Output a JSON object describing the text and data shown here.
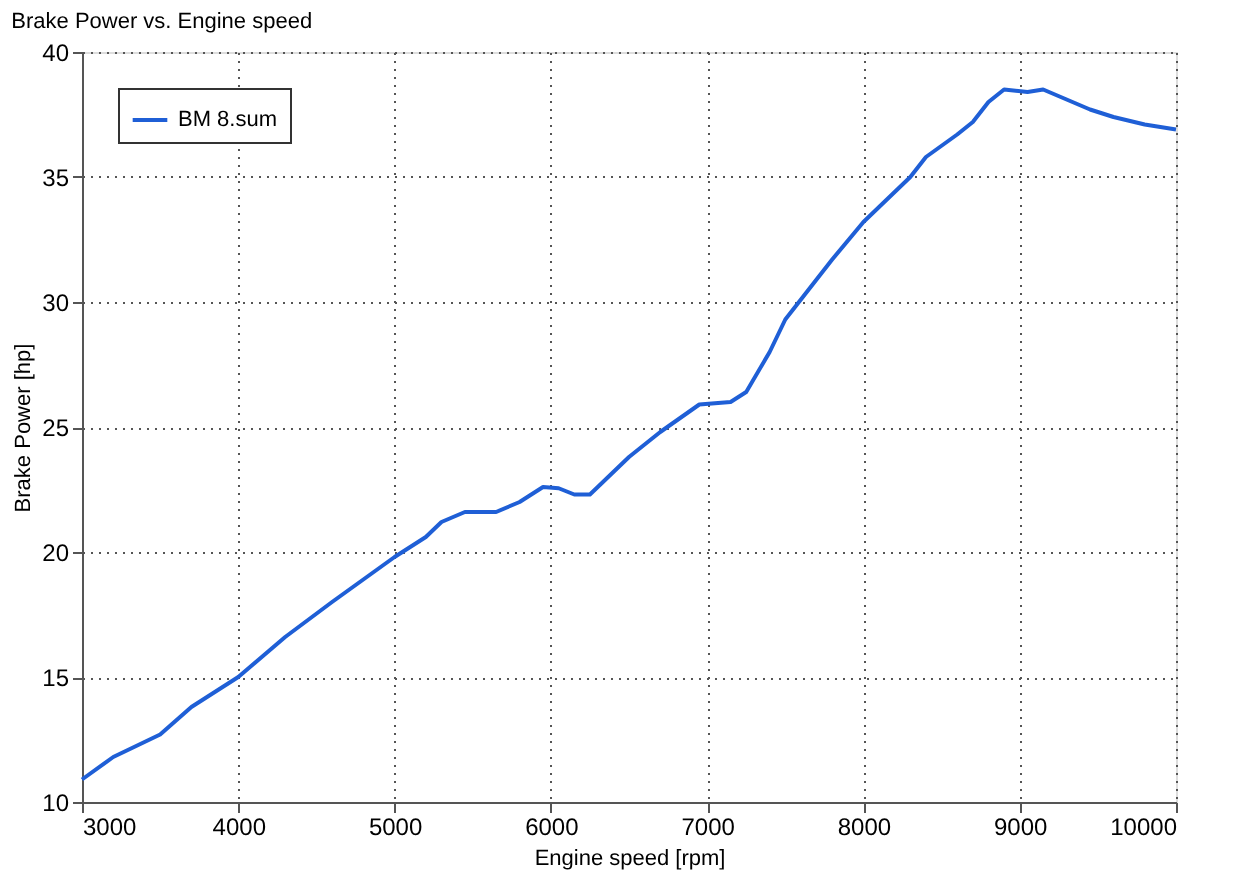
{
  "chart_data": {
    "type": "line",
    "title": "Brake Power vs. Engine speed",
    "xlabel": "Engine speed  [rpm]",
    "ylabel": "Brake Power  [hp]",
    "x": [
      3000,
      3200,
      3500,
      3700,
      4000,
      4300,
      4600,
      5000,
      5200,
      5300,
      5450,
      5650,
      5800,
      5950,
      6050,
      6150,
      6250,
      6350,
      6500,
      6700,
      6950,
      7150,
      7250,
      7400,
      7500,
      7650,
      7800,
      8000,
      8100,
      8300,
      8400,
      8600,
      8700,
      8800,
      8900,
      9050,
      9150,
      9300,
      9450,
      9600,
      9800,
      10000
    ],
    "series": [
      {
        "name": "BM 8.sum",
        "color": "#1f5fd6",
        "values": [
          10.9,
          11.8,
          12.7,
          13.8,
          15.0,
          16.6,
          18.0,
          19.8,
          20.6,
          21.2,
          21.6,
          21.6,
          22.0,
          22.6,
          22.55,
          22.3,
          22.3,
          22.9,
          23.8,
          24.8,
          25.9,
          26.0,
          26.4,
          28.0,
          29.3,
          30.5,
          31.7,
          33.2,
          33.8,
          35.0,
          35.8,
          36.7,
          37.2,
          38.0,
          38.5,
          38.4,
          38.5,
          38.1,
          37.7,
          37.4,
          37.1,
          36.9
        ]
      }
    ],
    "xlim": [
      3000,
      10000
    ],
    "xticks": [
      3000,
      4000,
      5000,
      6000,
      7000,
      8000,
      9000,
      10000
    ],
    "ylim": [
      10,
      40
    ],
    "yticks": [
      10,
      15,
      20,
      25,
      30,
      35,
      40
    ],
    "grid": true,
    "legend": "top left",
    "line_style": "solid",
    "marker": "none"
  }
}
